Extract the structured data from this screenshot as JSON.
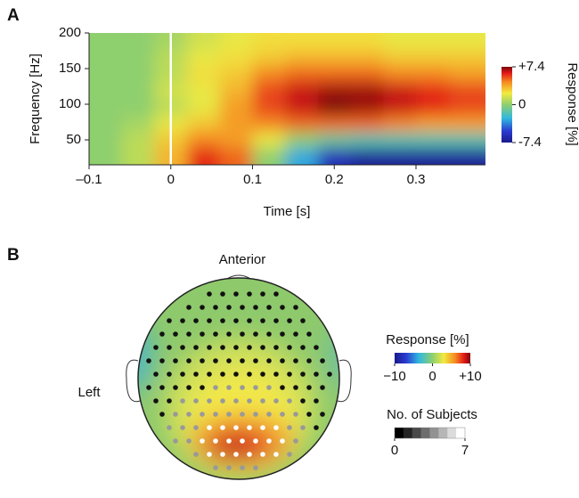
{
  "chart_data": [
    {
      "type": "heatmap",
      "panel": "A",
      "xlabel": "Time [s]",
      "ylabel": "Frequency [Hz]",
      "x": [
        -0.08,
        -0.04,
        0,
        0.04,
        0.08,
        0.12,
        0.16,
        0.2,
        0.24,
        0.28,
        0.32,
        0.36
      ],
      "y": [
        188,
        165,
        142,
        119,
        96,
        73,
        50,
        27
      ],
      "z": [
        [
          0,
          0,
          0.5,
          1.5,
          2,
          2.5,
          2.5,
          2.5,
          2.5,
          2,
          2,
          2
        ],
        [
          0,
          0,
          1,
          2,
          2.5,
          3,
          3.5,
          3.5,
          3.5,
          3,
          3,
          3
        ],
        [
          0,
          0,
          1,
          2.5,
          3,
          4.5,
          5,
          5,
          5,
          4.5,
          4.5,
          4
        ],
        [
          0,
          0,
          1.5,
          2,
          3.5,
          5.5,
          6.5,
          7,
          7,
          6.5,
          6,
          5.5
        ],
        [
          0,
          0,
          1,
          2,
          4,
          5.5,
          6.5,
          7.4,
          7,
          6.5,
          6,
          5.5
        ],
        [
          0,
          0.5,
          2,
          3,
          4,
          4.5,
          5,
          5,
          5,
          4.5,
          4,
          4
        ],
        [
          0,
          1,
          3,
          4.5,
          4,
          2,
          0,
          -1,
          -1.5,
          -1.5,
          -1.5,
          -1.5
        ],
        [
          0,
          1,
          3.5,
          6,
          5,
          0,
          -3,
          -6,
          -7,
          -7,
          -7,
          -7
        ]
      ],
      "xlim": [
        -0.1,
        0.385
      ],
      "ylim": [
        15,
        200
      ],
      "xticks": [
        {
          "value": -0.1,
          "label": "–0.1"
        },
        0,
        0.1,
        0.2,
        0.3
      ],
      "yticks": [
        50,
        100,
        150,
        200
      ],
      "colorbar_label": "Response [%]",
      "clim": [
        -7.4,
        7.4
      ],
      "cticks": [
        {
          "value": 7.4,
          "label": "+7.4"
        },
        0,
        {
          "value": -7.4,
          "label": "-7.4"
        }
      ]
    },
    {
      "type": "topomap",
      "panel": "B",
      "top_label": "Anterior",
      "side_label": "Left",
      "colorbar_label": "Response [%]",
      "clim": [
        -10,
        10
      ],
      "cticks": [
        {
          "value": -10,
          "label": "−10"
        },
        0,
        {
          "value": 10,
          "label": "+10"
        }
      ],
      "count_label": "No. of Subjects",
      "count_lim": [
        0,
        7
      ],
      "count_ticks": [
        0,
        7
      ]
    }
  ]
}
